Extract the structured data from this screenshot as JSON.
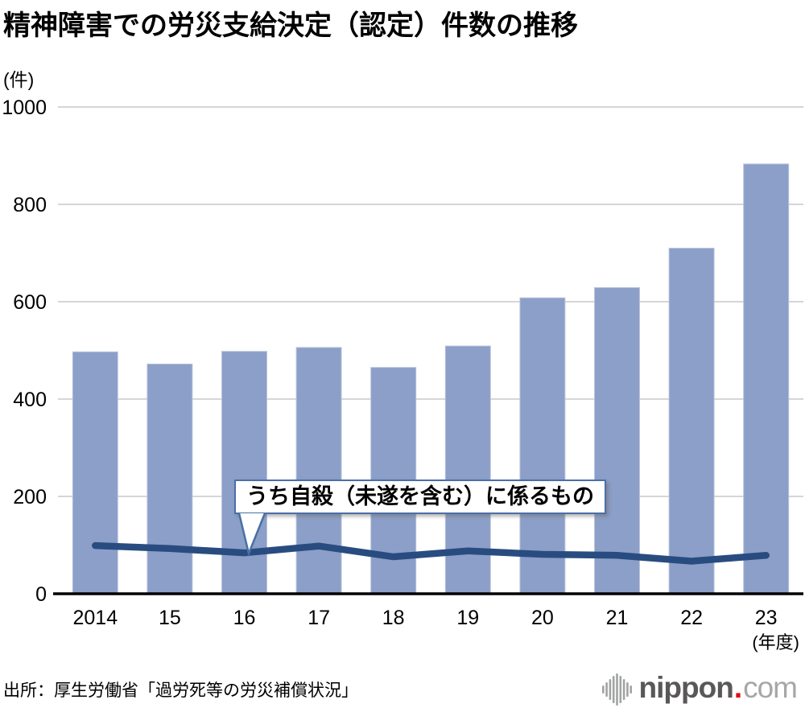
{
  "header": {
    "title": "精神障害での労災支給決定（認定）件数の推移"
  },
  "chart_data": {
    "type": "bar+line",
    "unit_label": "(件)",
    "categories": [
      "2014",
      "15",
      "16",
      "17",
      "18",
      "19",
      "20",
      "21",
      "22",
      "23"
    ],
    "x_axis_suffix": "(年度)",
    "bar_values": [
      497,
      472,
      498,
      506,
      465,
      509,
      608,
      629,
      710,
      883
    ],
    "line": {
      "label": "うち自殺（未遂を含む）に係るもの",
      "values": [
        99,
        93,
        84,
        98,
        76,
        88,
        81,
        79,
        67,
        79
      ]
    },
    "ylim": [
      0,
      1000
    ],
    "yticks": [
      0,
      200,
      400,
      600,
      800,
      1000
    ],
    "grid": "horizontal",
    "colors": {
      "bar": "#8c9fc8",
      "bar_edge": "#bac5de",
      "line": "#294c80",
      "grid": "#d6d6d6",
      "axis": "#000000",
      "callout_border": "#4a6fa8"
    }
  },
  "annotation": {
    "label": "うち自殺（未遂を含む）に係るもの"
  },
  "footer": {
    "source": "出所：厚生労働省「過労死等の労災補償状況」",
    "logo": {
      "name_bold": "nippon",
      "dot": ".",
      "name_light": "com"
    }
  }
}
